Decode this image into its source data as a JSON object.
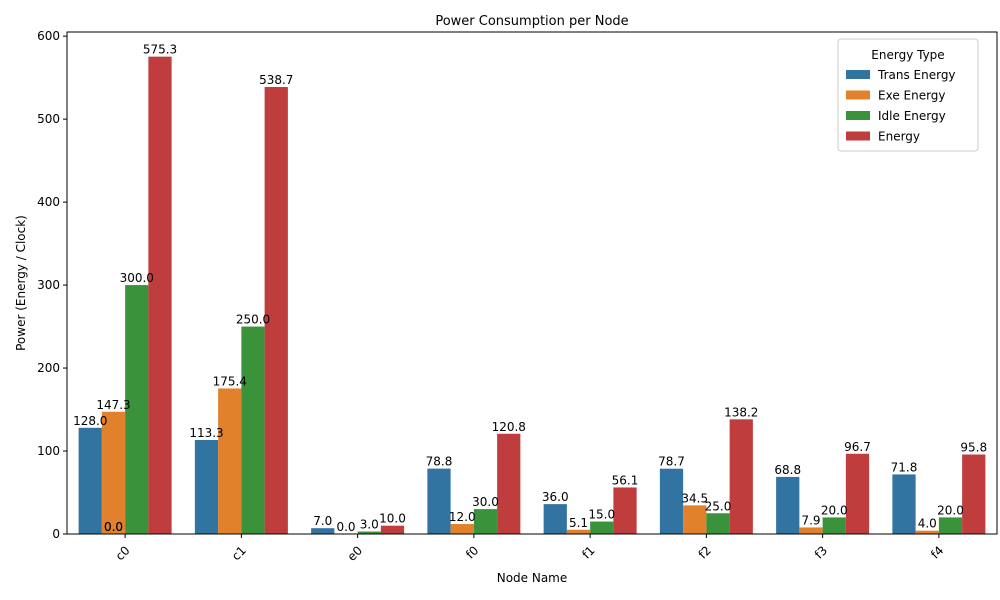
{
  "chart_data": {
    "type": "bar",
    "title": "Power Consumption per Node",
    "xlabel": "Node Name",
    "ylabel": "Power (Energy / Clock)",
    "ylim": [
      0,
      605
    ],
    "yticks": [
      0,
      100,
      200,
      300,
      400,
      500,
      600
    ],
    "categories": [
      "c0",
      "c1",
      "e0",
      "f0",
      "f1",
      "f2",
      "f3",
      "f4"
    ],
    "legend": {
      "title": "Energy Type",
      "placement": "top-right"
    },
    "series": [
      {
        "name": "Trans Energy",
        "color": "#3274a1",
        "values": [
          128.0,
          113.3,
          7.0,
          78.8,
          36.0,
          78.7,
          68.8,
          71.8
        ],
        "labels": [
          "128.0",
          "113.3",
          "7.0",
          "78.8",
          "36.0",
          "78.7",
          "68.8",
          "71.8"
        ]
      },
      {
        "name": "Exe Energy",
        "color": "#e1812c",
        "values": [
          147.3,
          175.4,
          0.0,
          12.0,
          5.1,
          34.5,
          7.9,
          4.0
        ],
        "labels": [
          "147.3",
          "175.4",
          "0.0",
          "12.0",
          "5.1",
          "34.5",
          "7.9",
          "4.0"
        ]
      },
      {
        "name": "Idle Energy",
        "color": "#3a923a",
        "values": [
          300.0,
          250.0,
          3.0,
          30.0,
          15.0,
          25.0,
          20.0,
          20.0
        ],
        "labels": [
          "300.0",
          "250.0",
          "3.0",
          "30.0",
          "15.0",
          "25.0",
          "20.0",
          "20.0"
        ]
      },
      {
        "name": "Energy",
        "color": "#c03d3e",
        "values": [
          575.3,
          538.7,
          10.0,
          120.8,
          56.1,
          138.2,
          96.7,
          95.8
        ],
        "labels": [
          "575.3",
          "538.7",
          "10.0",
          "120.8",
          "56.1",
          "138.2",
          "96.7",
          "95.8"
        ]
      }
    ],
    "extra_labels": [
      {
        "category": "c0",
        "value": 0.0,
        "text": "0.0"
      },
      {
        "category": "c0",
        "value": 0.0,
        "text": "0.0"
      }
    ]
  }
}
